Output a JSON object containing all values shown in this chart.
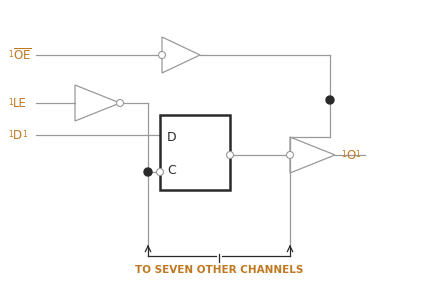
{
  "bg_color": "#ffffff",
  "line_color": "#999999",
  "dark_line_color": "#2a2a2a",
  "text_color_label": "#c07820",
  "label_bottom": "TO SEVEN OTHER CHANNELS",
  "label_D": "D",
  "label_C": "C"
}
